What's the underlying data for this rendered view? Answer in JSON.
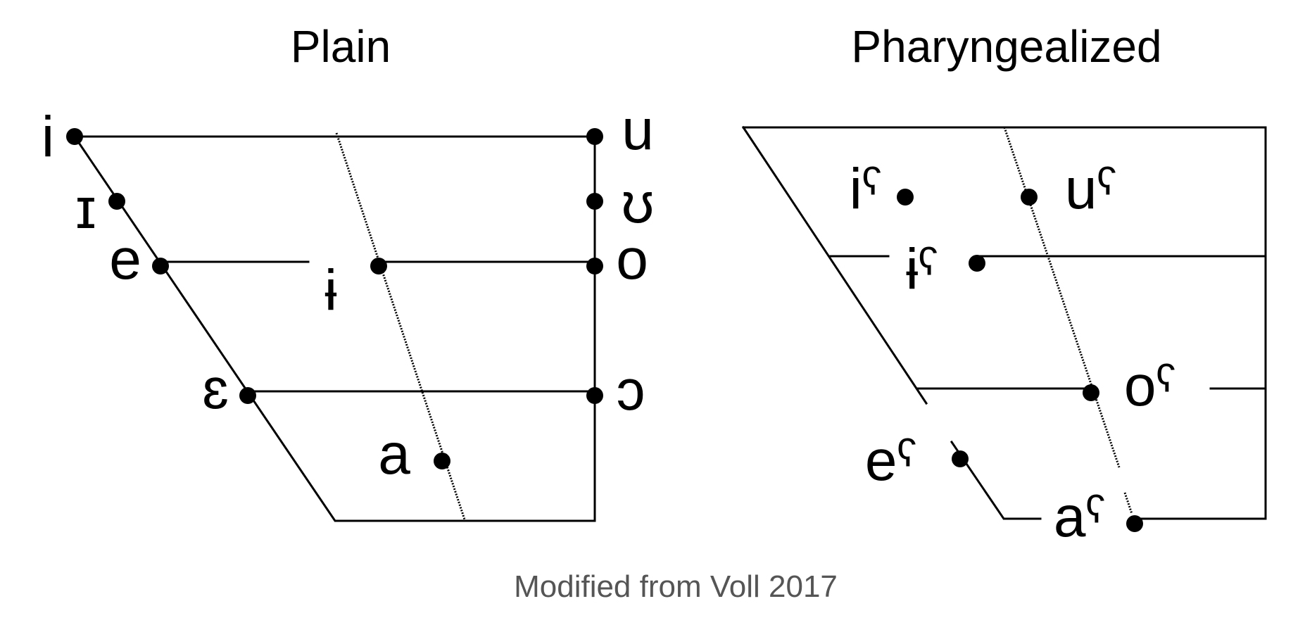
{
  "charts": [
    {
      "id": "plain",
      "title": "Plain",
      "vowels": [
        {
          "symbol": "i"
        },
        {
          "symbol": "ɪ"
        },
        {
          "symbol": "e"
        },
        {
          "symbol": "ɨ"
        },
        {
          "symbol": "ɛ"
        },
        {
          "symbol": "a"
        },
        {
          "symbol": "u"
        },
        {
          "symbol": "ʊ"
        },
        {
          "symbol": "o"
        },
        {
          "symbol": "ɔ"
        }
      ]
    },
    {
      "id": "pharyngealized",
      "title": "Pharyngealized",
      "vowels": [
        {
          "symbol": "iˤ"
        },
        {
          "symbol": "uˤ"
        },
        {
          "symbol": "ɨˤ"
        },
        {
          "symbol": "oˤ"
        },
        {
          "symbol": "eˤ"
        },
        {
          "symbol": "aˤ"
        }
      ]
    }
  ],
  "caption": "Modified from Voll 2017"
}
